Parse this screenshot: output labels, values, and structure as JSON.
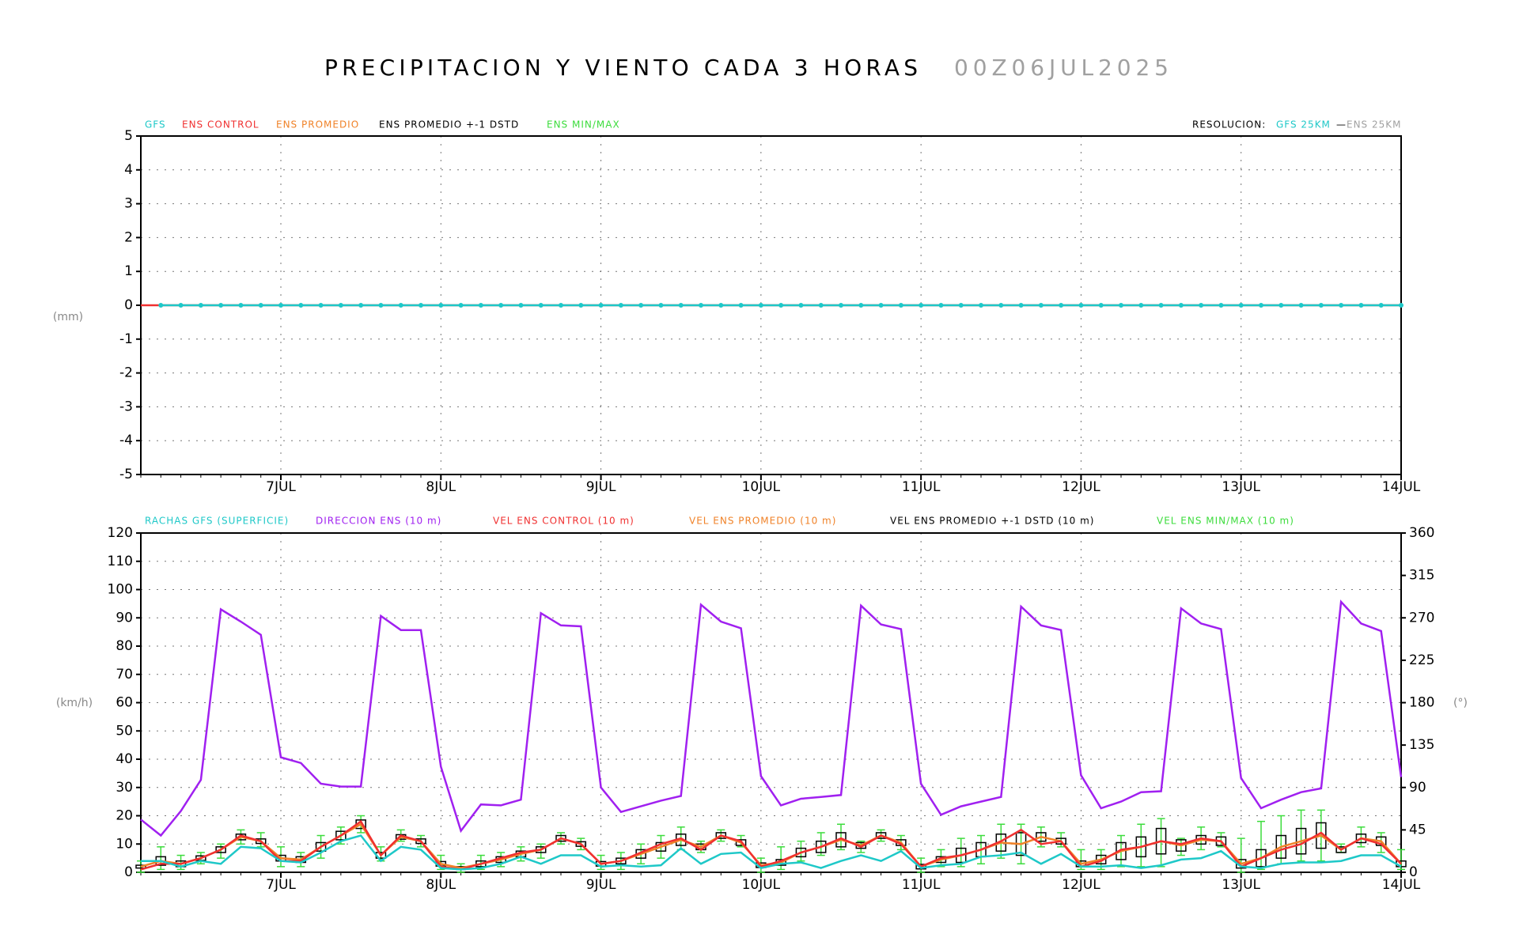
{
  "chart_data": [
    {
      "type": "line",
      "title": "PRECIPITACION Y VIENTO CADA 3 HORAS",
      "subtitle": "00Z06JUL2025",
      "ylabel": "(mm)",
      "resolution": {
        "label": "RESOLUCION:",
        "separator": "—",
        "items": [
          {
            "text": "GFS 25KM",
            "color": "#1ec8c8"
          },
          {
            "text": "ENS 25KM",
            "color": "#a0a0a0"
          }
        ]
      },
      "x": [
        3,
        6,
        9,
        12,
        15,
        18,
        21,
        24,
        27,
        30,
        33,
        36,
        39,
        42,
        45,
        48,
        51,
        54,
        57,
        60,
        63,
        66,
        69,
        72,
        75,
        78,
        81,
        84,
        87,
        90,
        93,
        96,
        99,
        102,
        105,
        108,
        111,
        114,
        117,
        120,
        123,
        126,
        129,
        132,
        135,
        138,
        141,
        144,
        147,
        150,
        153,
        156,
        159,
        162,
        165,
        168,
        171,
        174,
        177,
        180,
        183,
        186,
        189,
        192
      ],
      "xlim": [
        3,
        192
      ],
      "xticks": [
        {
          "value": 24,
          "label": "7JUL"
        },
        {
          "value": 48,
          "label": "8JUL"
        },
        {
          "value": 72,
          "label": "9JUL"
        },
        {
          "value": 96,
          "label": "10JUL"
        },
        {
          "value": 120,
          "label": "11JUL"
        },
        {
          "value": 144,
          "label": "12JUL"
        },
        {
          "value": 168,
          "label": "13JUL"
        },
        {
          "value": 192,
          "label": "14JUL"
        }
      ],
      "ylim": [
        -5,
        5
      ],
      "yticks": [
        -5,
        -4,
        -3,
        -2,
        -1,
        0,
        1,
        2,
        3,
        4,
        5
      ],
      "grid": true,
      "series": [
        {
          "name": "GFS",
          "color": "#1ec8c8",
          "markers": true,
          "values": [
            null,
            0,
            0,
            0,
            0,
            0,
            0,
            0,
            0,
            0,
            0,
            0,
            0,
            0,
            0,
            0,
            0,
            0,
            0,
            0,
            0,
            0,
            0,
            0,
            0,
            0,
            0,
            0,
            0,
            0,
            0,
            0,
            0,
            0,
            0,
            0,
            0,
            0,
            0,
            0,
            0,
            0,
            0,
            0,
            0,
            0,
            0,
            0,
            0,
            0,
            0,
            0,
            0,
            0,
            0,
            0,
            0,
            0,
            0,
            0,
            0,
            0,
            0,
            0
          ]
        },
        {
          "name": "ENS CONTROL",
          "color": "#f03030",
          "values": [
            0,
            0,
            0,
            0,
            0,
            0,
            0,
            0,
            0,
            0,
            0,
            0,
            0,
            0,
            0,
            0,
            0,
            0,
            0,
            0,
            0,
            0,
            0,
            0,
            0,
            0,
            0,
            0,
            0,
            0,
            0,
            0,
            0,
            0,
            0,
            0,
            0,
            0,
            0,
            0,
            0,
            0,
            0,
            0,
            0,
            0,
            0,
            0,
            0,
            0,
            0,
            0,
            0,
            0,
            0,
            0,
            0,
            0,
            0,
            0,
            0,
            0,
            0,
            0
          ]
        },
        {
          "name": "ENS PROMEDIO",
          "color": "#f08228"
        },
        {
          "name": "ENS PROMEDIO +-1 DSTD",
          "color": "#000000"
        },
        {
          "name": "ENS MIN/MAX",
          "color": "#3cdc3c"
        }
      ]
    },
    {
      "type": "line",
      "ylabel": "(km/h)",
      "y2label": "(°)",
      "x": [
        3,
        6,
        9,
        12,
        15,
        18,
        21,
        24,
        27,
        30,
        33,
        36,
        39,
        42,
        45,
        48,
        51,
        54,
        57,
        60,
        63,
        66,
        69,
        72,
        75,
        78,
        81,
        84,
        87,
        90,
        93,
        96,
        99,
        102,
        105,
        108,
        111,
        114,
        117,
        120,
        123,
        126,
        129,
        132,
        135,
        138,
        141,
        144,
        147,
        150,
        153,
        156,
        159,
        162,
        165,
        168,
        171,
        174,
        177,
        180,
        183,
        186,
        189,
        192
      ],
      "xlim": [
        3,
        192
      ],
      "xticks": [
        {
          "value": 24,
          "label": "7JUL"
        },
        {
          "value": 48,
          "label": "8JUL"
        },
        {
          "value": 72,
          "label": "9JUL"
        },
        {
          "value": 96,
          "label": "10JUL"
        },
        {
          "value": 120,
          "label": "11JUL"
        },
        {
          "value": 144,
          "label": "12JUL"
        },
        {
          "value": 168,
          "label": "13JUL"
        },
        {
          "value": 192,
          "label": "14JUL"
        }
      ],
      "ylim": [
        0,
        120
      ],
      "yticks": [
        0,
        10,
        20,
        30,
        40,
        50,
        60,
        70,
        80,
        90,
        100,
        110,
        120
      ],
      "y2lim": [
        0,
        360
      ],
      "y2ticks": [
        0,
        45,
        90,
        135,
        180,
        225,
        270,
        315,
        360
      ],
      "grid": true,
      "series": [
        {
          "name": "RACHAS GFS (SUPERFICIE)",
          "color": "#1ec8c8",
          "style": "line",
          "values": [
            4,
            4,
            2,
            4,
            3,
            9,
            8.5,
            4,
            3.5,
            7,
            11,
            13,
            4,
            9,
            8,
            1.5,
            1,
            1.5,
            3,
            5.5,
            3,
            6,
            6,
            2,
            2.5,
            2,
            2.5,
            8.5,
            3,
            6.5,
            7,
            1.5,
            3,
            3.5,
            1.5,
            4,
            6,
            4,
            7.5,
            1.5,
            2.5,
            3,
            5.5,
            6,
            7,
            3,
            6.5,
            2,
            2,
            2.5,
            1.5,
            2.5,
            4.5,
            5,
            7.5,
            2,
            1.5,
            3,
            3.5,
            3.5,
            4,
            6,
            6,
            2
          ]
        },
        {
          "name": "DIRECCION ENS (10 m)",
          "color": "#a020f0",
          "style": "line",
          "axis": "y2",
          "values": [
            56,
            39,
            65,
            98,
            279,
            266,
            252,
            122,
            116,
            94,
            91,
            91,
            272,
            257,
            257,
            112,
            44,
            72,
            71,
            77,
            275,
            262,
            261,
            90,
            64,
            70,
            76,
            81,
            284,
            266,
            259,
            102,
            71,
            78,
            80,
            82,
            283,
            263,
            258,
            94,
            61,
            70,
            75,
            80,
            282,
            262,
            257,
            103,
            68,
            75,
            85,
            86,
            280,
            264,
            258,
            100,
            68,
            77,
            85,
            89,
            287,
            264,
            256,
            101
          ]
        },
        {
          "name": "VEL ENS CONTROL (10 m)",
          "color": "#f03030",
          "style": "line",
          "values": [
            1,
            3,
            3,
            5,
            8,
            13,
            11,
            4,
            4,
            9,
            13,
            18,
            6,
            13,
            11,
            2,
            1,
            3,
            5,
            7,
            8,
            12,
            10,
            3,
            4,
            7,
            10,
            12,
            8,
            13,
            11,
            2,
            4,
            7,
            9,
            12,
            9,
            13,
            10,
            2,
            5,
            6,
            8,
            11,
            15,
            10,
            11,
            2,
            4,
            8,
            9,
            11,
            10,
            12,
            11,
            2,
            5,
            8,
            10,
            14,
            8,
            12,
            10,
            3
          ]
        },
        {
          "name": "VEL ENS PROMEDIO (10 m)",
          "color": "#f08228",
          "style": "line",
          "values": [
            2,
            4,
            3,
            5,
            8,
            12.5,
            11,
            5,
            4.5,
            9,
            13,
            17,
            6,
            12.5,
            11,
            3,
            1.5,
            3,
            4.5,
            6.5,
            8,
            12,
            10,
            3,
            4,
            6.5,
            9,
            11.5,
            9,
            13,
            10.5,
            2.5,
            3.5,
            7,
            9,
            11.5,
            9.5,
            13,
            10.5,
            2,
            4.5,
            6,
            8,
            10.5,
            10,
            12.5,
            11,
            3,
            4.5,
            7.5,
            9,
            11,
            9.5,
            11.5,
            11,
            3,
            5,
            9,
            11,
            13,
            8,
            12,
            11,
            3
          ]
        },
        {
          "name": "VEL ENS PROMEDIO +-1 DSTD (10 m)",
          "color": "#000000",
          "style": "box",
          "values": [
            0.5,
            1.5,
            1,
            0.8,
            1,
            1,
            0.8,
            1,
            1,
            1.5,
            1.5,
            1.5,
            1,
            0.8,
            0.8,
            0.8,
            0.5,
            1,
            1,
            1,
            1,
            1,
            0.8,
            0.8,
            1,
            1.5,
            1.5,
            2,
            1,
            1,
            1,
            0.8,
            1,
            1.5,
            2,
            2.5,
            1,
            1,
            1,
            0.8,
            1,
            2.5,
            2.5,
            3,
            4,
            1.5,
            1,
            1,
            1.5,
            3,
            3.5,
            4.5,
            2,
            1.5,
            1.5,
            1.5,
            3,
            4,
            4.5,
            4.5,
            1,
            1.5,
            1.5,
            1
          ]
        },
        {
          "name": "VEL ENS MIN/MAX (10 m)",
          "color": "#3cdc3c",
          "style": "range",
          "low": [
            0,
            1,
            1,
            3,
            5,
            10,
            9,
            2,
            2,
            5,
            10,
            14,
            4,
            11,
            9,
            1,
            0,
            1,
            2,
            4,
            5,
            10,
            8,
            1,
            1,
            3,
            5,
            8,
            7,
            11,
            9,
            0,
            1,
            4,
            6,
            8,
            7,
            11,
            8,
            0,
            2,
            2,
            3,
            5,
            3,
            9,
            9,
            1,
            1,
            2,
            2,
            2,
            6,
            8,
            9,
            0,
            1,
            3,
            4,
            4,
            7,
            9,
            7,
            1
          ],
          "high": [
            4,
            9,
            6,
            7,
            10,
            15,
            14,
            9,
            7,
            13,
            16,
            20,
            9,
            15,
            13,
            6,
            3,
            6,
            7,
            9,
            10,
            14,
            12,
            6,
            7,
            10,
            13,
            16,
            11,
            15,
            13,
            5,
            9,
            11,
            14,
            17,
            11,
            15,
            13,
            5,
            8,
            12,
            13,
            17,
            17,
            16,
            14,
            8,
            8,
            13,
            17,
            19,
            12,
            16,
            14,
            12,
            18,
            20,
            22,
            22,
            10,
            16,
            14,
            8
          ]
        }
      ]
    }
  ]
}
